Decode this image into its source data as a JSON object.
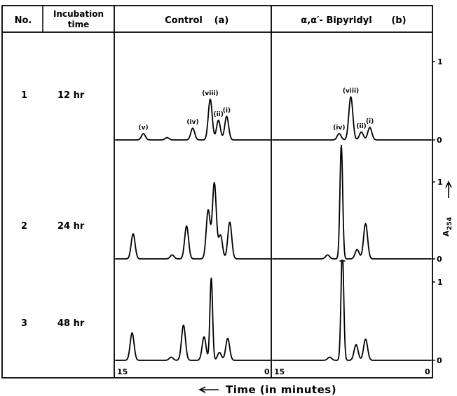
{
  "header": {
    "no": "No.",
    "incubation": [
      "Incubation",
      "time"
    ],
    "control": "Control",
    "control_tag": "(a)",
    "bipy": "α,α′- Bipyridyl",
    "bipy_tag": "(b)"
  },
  "rows": [
    {
      "no": "1",
      "time": "12 hr"
    },
    {
      "no": "2",
      "time": "24 hr"
    },
    {
      "no": "3",
      "time": "48 hr"
    }
  ],
  "axis": {
    "y_label_main": "A",
    "y_label_sub": "254",
    "y_ticks": [
      "0",
      "1"
    ],
    "x_left": "15",
    "x_right": "0",
    "x_caption": "Time (in minutes)"
  },
  "chart_data": {
    "type": "line",
    "xlabel": "Time (in minutes)",
    "ylabel": "A254",
    "xlim": [
      15,
      0
    ],
    "ylim": [
      0,
      1.2
    ],
    "panels": [
      {
        "row": 1,
        "column": "Control (a)",
        "peaks": [
          {
            "x": 12.3,
            "y": 0.08,
            "label": "(v)"
          },
          {
            "x": 10.0,
            "y": 0.03
          },
          {
            "x": 7.5,
            "y": 0.15,
            "label": "(iv)"
          },
          {
            "x": 5.8,
            "y": 0.52,
            "label": "(viii)"
          },
          {
            "x": 5.0,
            "y": 0.25,
            "label": "(ii)"
          },
          {
            "x": 4.2,
            "y": 0.3,
            "label": "(i)"
          }
        ]
      },
      {
        "row": 1,
        "column": "α,α′- Bipyridyl (b)",
        "peaks": [
          {
            "x": 8.7,
            "y": 0.08,
            "label": "(iv)"
          },
          {
            "x": 7.6,
            "y": 0.55,
            "label": "(viii)"
          },
          {
            "x": 6.6,
            "y": 0.1,
            "label": "(ii)"
          },
          {
            "x": 5.8,
            "y": 0.16,
            "label": "(i)"
          }
        ]
      },
      {
        "row": 2,
        "column": "Control (a)",
        "peaks": [
          {
            "x": 13.3,
            "y": 0.32
          },
          {
            "x": 9.5,
            "y": 0.05
          },
          {
            "x": 8.1,
            "y": 0.42
          },
          {
            "x": 6.0,
            "y": 0.62
          },
          {
            "x": 5.4,
            "y": 0.97
          },
          {
            "x": 4.8,
            "y": 0.3
          },
          {
            "x": 3.9,
            "y": 0.47
          }
        ]
      },
      {
        "row": 2,
        "column": "α,α′- Bipyridyl (b)",
        "peaks": [
          {
            "x": 9.8,
            "y": 0.05
          },
          {
            "x": 8.5,
            "y": 1.45
          },
          {
            "x": 7.0,
            "y": 0.12
          },
          {
            "x": 6.2,
            "y": 0.45
          }
        ]
      },
      {
        "row": 3,
        "column": "Control (a)",
        "peaks": [
          {
            "x": 13.4,
            "y": 0.35
          },
          {
            "x": 9.6,
            "y": 0.04
          },
          {
            "x": 8.4,
            "y": 0.45
          },
          {
            "x": 6.4,
            "y": 0.3
          },
          {
            "x": 5.7,
            "y": 1.05
          },
          {
            "x": 4.9,
            "y": 0.1
          },
          {
            "x": 4.1,
            "y": 0.28
          }
        ]
      },
      {
        "row": 3,
        "column": "α,α′- Bipyridyl (b)",
        "peaks": [
          {
            "x": 9.6,
            "y": 0.04
          },
          {
            "x": 8.4,
            "y": 1.4
          },
          {
            "x": 7.1,
            "y": 0.2
          },
          {
            "x": 6.2,
            "y": 0.27
          }
        ]
      }
    ]
  }
}
